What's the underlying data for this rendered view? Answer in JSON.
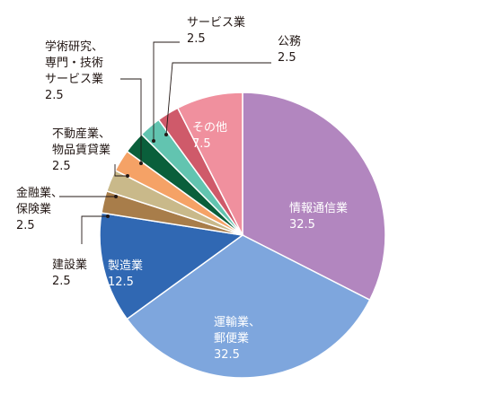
{
  "chart_data": {
    "type": "pie",
    "start_angle_deg": 0,
    "direction": "clockwise",
    "slices": [
      {
        "label_lines": [
          "情報通信業"
        ],
        "value": 32.5,
        "value_text": "32.5",
        "color": "#b286bf",
        "label_inside": true
      },
      {
        "label_lines": [
          "運輸業、",
          "郵便業"
        ],
        "value": 32.5,
        "value_text": "32.5",
        "color": "#7ea6dd",
        "label_inside": true
      },
      {
        "label_lines": [
          "製造業"
        ],
        "value": 12.5,
        "value_text": "12.5",
        "color": "#3068b3",
        "label_inside": true
      },
      {
        "label_lines": [
          "建設業"
        ],
        "value": 2.5,
        "value_text": "2.5",
        "color": "#a87d4a",
        "label_inside": false
      },
      {
        "label_lines": [
          "金融業、",
          "保険業"
        ],
        "value": 2.5,
        "value_text": "2.5",
        "color": "#c9b98a",
        "label_inside": false
      },
      {
        "label_lines": [
          "不動産業、",
          "物品賃貸業"
        ],
        "value": 2.5,
        "value_text": "2.5",
        "color": "#f5a266",
        "label_inside": false
      },
      {
        "label_lines": [
          "学術研究、",
          "専門・技術",
          "サービス業"
        ],
        "value": 2.5,
        "value_text": "2.5",
        "color": "#0a5f3b",
        "label_inside": false
      },
      {
        "label_lines": [
          "サービス業"
        ],
        "value": 2.5,
        "value_text": "2.5",
        "color": "#62c4b0",
        "label_inside": false
      },
      {
        "label_lines": [
          "公務"
        ],
        "value": 2.5,
        "value_text": "2.5",
        "color": "#cf5a6a",
        "label_inside": false
      },
      {
        "label_lines": [
          "その他"
        ],
        "value": 7.5,
        "value_text": "7.5",
        "color": "#f0909e",
        "label_inside": true
      }
    ]
  }
}
